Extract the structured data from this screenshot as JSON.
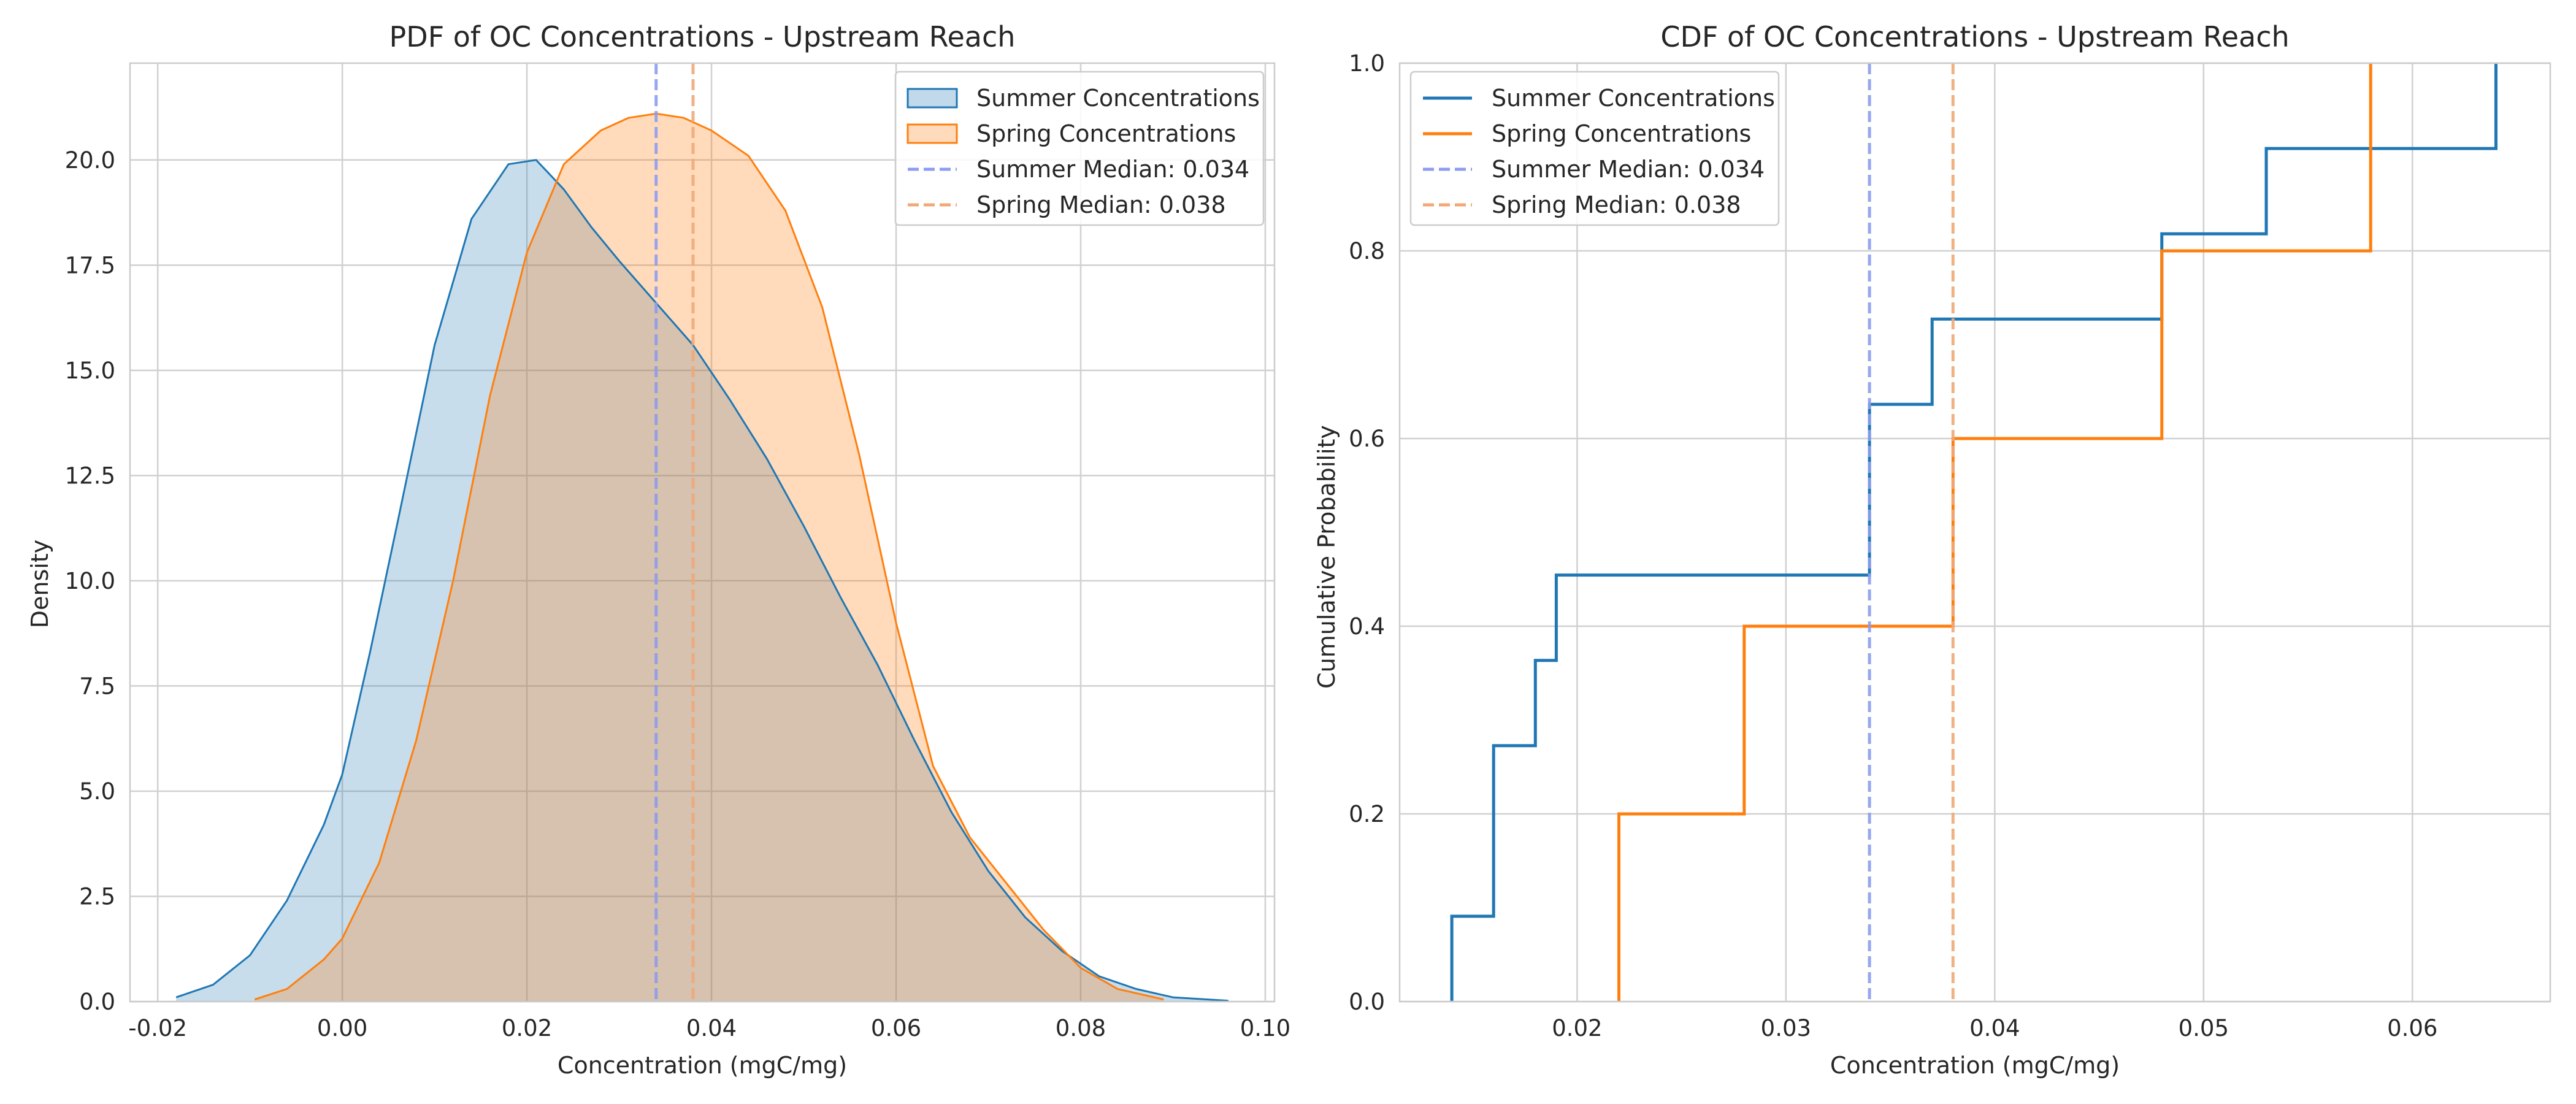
{
  "colors": {
    "summer": "#1f77b4",
    "spring": "#ff7f0e",
    "summer_median": "#8c9cf0",
    "spring_median": "#f0a878",
    "grid": "#d0d0d0",
    "spine": "#cccccc"
  },
  "chart_data": [
    {
      "type": "area",
      "title": "PDF of OC Concentrations - Upstream Reach",
      "xlabel": "Concentration (mgC/mg)",
      "ylabel": "Density",
      "xlim": [
        -0.023,
        0.101
      ],
      "ylim": [
        0,
        22.3
      ],
      "xticks": [
        -0.02,
        0.0,
        0.02,
        0.04,
        0.06,
        0.08,
        0.1
      ],
      "xtick_labels": [
        "-0.02",
        "0.00",
        "0.02",
        "0.04",
        "0.06",
        "0.08",
        "0.10"
      ],
      "yticks": [
        0,
        2.5,
        5,
        7.5,
        10,
        12.5,
        15,
        17.5,
        20
      ],
      "ytick_labels": [
        "0.0",
        "2.5",
        "5.0",
        "7.5",
        "10.0",
        "12.5",
        "15.0",
        "17.5",
        "20.0"
      ],
      "grid": true,
      "legend_placement": "upper-right",
      "series": [
        {
          "name": "Summer Concentrations",
          "x": [
            -0.018,
            -0.014,
            -0.01,
            -0.006,
            -0.002,
            0.0,
            0.003,
            0.006,
            0.01,
            0.014,
            0.018,
            0.021,
            0.024,
            0.027,
            0.03,
            0.034,
            0.038,
            0.042,
            0.046,
            0.05,
            0.054,
            0.058,
            0.062,
            0.066,
            0.07,
            0.074,
            0.078,
            0.082,
            0.086,
            0.09,
            0.096
          ],
          "y": [
            0.1,
            0.4,
            1.1,
            2.4,
            4.2,
            5.4,
            8.3,
            11.4,
            15.6,
            18.6,
            19.9,
            20.0,
            19.3,
            18.4,
            17.6,
            16.6,
            15.6,
            14.3,
            12.9,
            11.3,
            9.6,
            8.0,
            6.2,
            4.5,
            3.1,
            2.0,
            1.2,
            0.6,
            0.3,
            0.1,
            0.02
          ]
        },
        {
          "name": "Spring Concentrations",
          "x": [
            -0.0095,
            -0.006,
            -0.002,
            0.0,
            0.004,
            0.008,
            0.012,
            0.016,
            0.02,
            0.024,
            0.028,
            0.031,
            0.034,
            0.037,
            0.04,
            0.044,
            0.048,
            0.052,
            0.056,
            0.06,
            0.064,
            0.068,
            0.072,
            0.076,
            0.08,
            0.084,
            0.089
          ],
          "y": [
            0.05,
            0.3,
            1.0,
            1.5,
            3.3,
            6.2,
            10.0,
            14.4,
            17.8,
            19.9,
            20.7,
            21.0,
            21.1,
            21.0,
            20.7,
            20.1,
            18.8,
            16.5,
            13.0,
            9.0,
            5.6,
            3.9,
            2.8,
            1.7,
            0.8,
            0.3,
            0.05
          ]
        }
      ],
      "medians": [
        {
          "name": "Summer Median: 0.034",
          "value": 0.034
        },
        {
          "name": "Spring Median: 0.038",
          "value": 0.038
        }
      ]
    },
    {
      "type": "line",
      "title": "CDF of OC Concentrations - Upstream Reach",
      "xlabel": "Concentration (mgC/mg)",
      "ylabel": "Cumulative Probability",
      "xlim": [
        0.0115,
        0.0666
      ],
      "ylim": [
        0,
        1.0
      ],
      "xticks": [
        0.02,
        0.03,
        0.04,
        0.05,
        0.06
      ],
      "xtick_labels": [
        "0.02",
        "0.03",
        "0.04",
        "0.05",
        "0.06"
      ],
      "yticks": [
        0,
        0.2,
        0.4,
        0.6,
        0.8,
        1.0
      ],
      "ytick_labels": [
        "0.0",
        "0.2",
        "0.4",
        "0.6",
        "0.8",
        "1.0"
      ],
      "grid": true,
      "legend_placement": "upper-left",
      "series": [
        {
          "name": "Summer Concentrations",
          "x": [
            0.014,
            0.016,
            0.018,
            0.019,
            0.034,
            0.037,
            0.048,
            0.053,
            0.064
          ],
          "y": [
            0.0909,
            0.2727,
            0.3636,
            0.4545,
            0.6364,
            0.7273,
            0.8182,
            0.9091,
            1.0
          ]
        },
        {
          "name": "Spring Concentrations",
          "x": [
            0.022,
            0.028,
            0.038,
            0.048,
            0.058
          ],
          "y": [
            0.2,
            0.4,
            0.6,
            0.8,
            1.0
          ]
        }
      ],
      "medians": [
        {
          "name": "Summer Median: 0.034",
          "value": 0.034
        },
        {
          "name": "Spring Median: 0.038",
          "value": 0.038
        }
      ]
    }
  ]
}
